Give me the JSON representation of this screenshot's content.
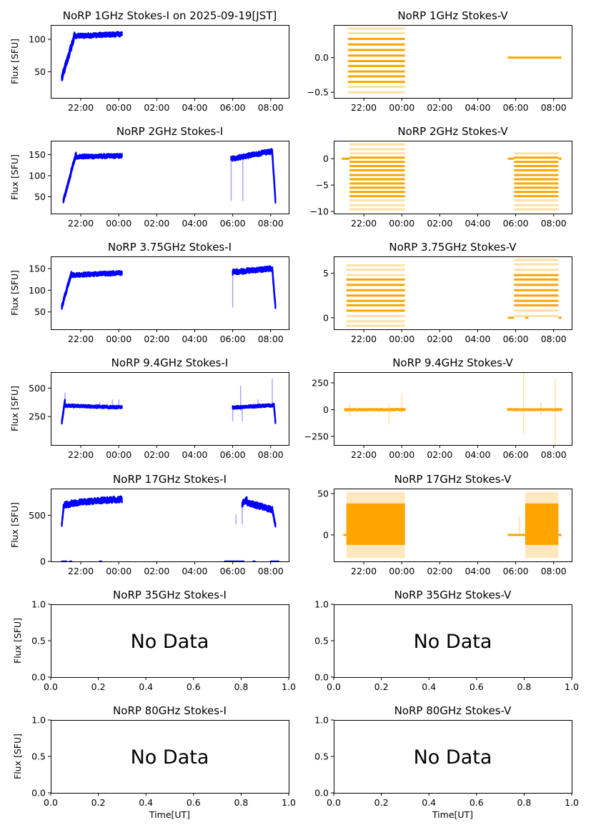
{
  "figure": {
    "colors": {
      "stokes_i": "#0000ff",
      "stokes_v": "#ffa500",
      "axis": "#000000"
    },
    "ylabel": "Flux [SFU]",
    "xlabel": "Time[UT]",
    "no_data_text": "No Data"
  },
  "chart_data": [
    {
      "type": "scatter",
      "title": "NoRP 1GHz Stokes-I on 2025-09-19[JST]",
      "stokes": "I",
      "has_data": true,
      "xlabel": "",
      "ylabel": "Flux [SFU]",
      "xlim": [
        "20:25",
        "08:57"
      ],
      "ylim": [
        10,
        122
      ],
      "xticks": [
        "22:00",
        "00:00",
        "02:00",
        "04:00",
        "06:00",
        "08:00"
      ],
      "yticks": [
        50,
        100
      ],
      "segments": [
        {
          "start": "21:00",
          "end": "21:40",
          "from": 40,
          "to": 105,
          "band": 8,
          "shape": "ramp"
        },
        {
          "start": "21:40",
          "end": "00:10",
          "from": 105,
          "to": 108,
          "band": 5,
          "shape": "flat"
        }
      ],
      "spikes": []
    },
    {
      "type": "scatter",
      "title": "NoRP 1GHz Stokes-V",
      "stokes": "V",
      "has_data": true,
      "xlabel": "",
      "ylabel": "",
      "xlim": [
        "20:25",
        "08:57"
      ],
      "ylim": [
        -0.58,
        0.47
      ],
      "xticks": [
        "22:00",
        "00:00",
        "02:00",
        "04:00",
        "06:00",
        "08:00"
      ],
      "yticks": [
        -0.5,
        0.0
      ],
      "segments": [
        {
          "start": "21:10",
          "end": "00:10",
          "quantized_levels": [
            -0.5,
            -0.42,
            -0.35,
            -0.27,
            -0.2,
            -0.12,
            -0.05,
            0.03,
            0.11,
            0.19,
            0.27,
            0.35,
            0.42
          ],
          "core_range": [
            -0.35,
            0.27
          ]
        },
        {
          "start": "05:35",
          "end": "08:25",
          "constant": 0.0
        }
      ],
      "spikes": []
    },
    {
      "type": "scatter",
      "title": "NoRP 2GHz Stokes-I",
      "stokes": "I",
      "has_data": true,
      "xlabel": "",
      "ylabel": "Flux [SFU]",
      "xlim": [
        "20:25",
        "08:57"
      ],
      "ylim": [
        10,
        183
      ],
      "xticks": [
        "22:00",
        "00:00",
        "02:00",
        "04:00",
        "06:00",
        "08:00"
      ],
      "yticks": [
        50,
        100,
        150
      ],
      "segments": [
        {
          "start": "21:05",
          "end": "21:45",
          "from": 40,
          "to": 152,
          "band": 8,
          "shape": "ramp"
        },
        {
          "start": "21:45",
          "end": "00:10",
          "from": 145,
          "to": 147,
          "band": 7,
          "shape": "flat"
        },
        {
          "start": "05:55",
          "end": "08:05",
          "from": 140,
          "to": 158,
          "band": 8,
          "shape": "flat"
        },
        {
          "start": "08:05",
          "end": "08:15",
          "from": 155,
          "to": 40,
          "band": 8,
          "shape": "ramp"
        }
      ],
      "spikes": [
        {
          "t": "05:55",
          "min": 40,
          "max": 145
        },
        {
          "t": "06:32",
          "min": 40,
          "max": 140
        }
      ]
    },
    {
      "type": "scatter",
      "title": "NoRP 2GHz Stokes-V",
      "stokes": "V",
      "has_data": true,
      "xlabel": "",
      "ylabel": "",
      "xlim": [
        "20:25",
        "08:57"
      ],
      "ylim": [
        -10.4,
        3.4
      ],
      "xticks": [
        "22:00",
        "00:00",
        "02:00",
        "04:00",
        "06:00",
        "08:00"
      ],
      "yticks": [
        -10,
        -5,
        0
      ],
      "segments": [
        {
          "start": "21:15",
          "end": "00:10",
          "quantized_levels": [
            2.7,
            1.8,
            1.0,
            0.2,
            -0.6,
            -1.4,
            -2.2,
            -3.1,
            -3.9,
            -4.7,
            -5.5,
            -6.3,
            -7.1,
            -7.9,
            -8.8,
            -9.6
          ],
          "core_range": [
            -7.1,
            0.2
          ]
        },
        {
          "start": "05:55",
          "end": "08:15",
          "quantized_levels": [
            1.0,
            0.2,
            -0.6,
            -1.4,
            -2.2,
            -3.1,
            -3.9,
            -4.7,
            -5.5,
            -6.3,
            -7.1,
            -7.9,
            -8.8,
            -9.6
          ],
          "core_range": [
            -7.1,
            0.2
          ]
        },
        {
          "start": "20:50",
          "end": "21:15",
          "constant": 0.0
        },
        {
          "start": "05:35",
          "end": "05:55",
          "constant": 0.0
        },
        {
          "start": "08:15",
          "end": "08:25",
          "constant": 0.0
        }
      ],
      "spikes": []
    },
    {
      "type": "scatter",
      "title": "NoRP 3.75GHz Stokes-I",
      "stokes": "I",
      "has_data": true,
      "xlabel": "",
      "ylabel": "Flux [SFU]",
      "xlim": [
        "20:25",
        "08:57"
      ],
      "ylim": [
        10,
        178
      ],
      "xticks": [
        "22:00",
        "00:00",
        "02:00",
        "04:00",
        "06:00",
        "08:00"
      ],
      "yticks": [
        50,
        100,
        150
      ],
      "segments": [
        {
          "start": "21:00",
          "end": "21:30",
          "from": 62,
          "to": 140,
          "band": 8,
          "shape": "ramp"
        },
        {
          "start": "21:30",
          "end": "00:10",
          "from": 135,
          "to": 140,
          "band": 7,
          "shape": "flat"
        },
        {
          "start": "06:00",
          "end": "08:05",
          "from": 142,
          "to": 150,
          "band": 8,
          "shape": "flat"
        },
        {
          "start": "08:05",
          "end": "08:15",
          "from": 150,
          "to": 62,
          "band": 8,
          "shape": "ramp"
        }
      ],
      "spikes": [
        {
          "t": "06:00",
          "min": 60,
          "max": 140
        }
      ]
    },
    {
      "type": "scatter",
      "title": "NoRP 3.75GHz Stokes-V",
      "stokes": "V",
      "has_data": true,
      "xlabel": "",
      "ylabel": "",
      "xlim": [
        "20:25",
        "08:57"
      ],
      "ylim": [
        -1.3,
        6.9
      ],
      "xticks": [
        "22:00",
        "00:00",
        "02:00",
        "04:00",
        "06:00",
        "08:00"
      ],
      "yticks": [
        0,
        5
      ],
      "segments": [
        {
          "start": "21:05",
          "end": "00:10",
          "quantized_levels": [
            -0.9,
            -0.4,
            0.2,
            0.8,
            1.4,
            1.9,
            2.5,
            3.1,
            3.7,
            4.3,
            4.8,
            5.4,
            5.9
          ],
          "core_range": [
            0.8,
            4.3
          ]
        },
        {
          "start": "05:55",
          "end": "08:15",
          "quantized_levels": [
            0.2,
            0.8,
            1.4,
            1.9,
            2.5,
            3.1,
            3.7,
            4.3,
            4.8,
            5.4,
            6.0,
            6.5
          ],
          "core_range": [
            1.4,
            4.8
          ]
        },
        {
          "start": "05:35",
          "end": "05:55",
          "constant": 0.0
        },
        {
          "start": "06:30",
          "end": "06:40",
          "constant": 0.0
        },
        {
          "start": "08:15",
          "end": "08:25",
          "constant": 0.0
        }
      ],
      "spikes": []
    },
    {
      "type": "scatter",
      "title": "NoRP 9.4GHz Stokes-I",
      "stokes": "I",
      "has_data": true,
      "xlabel": "",
      "ylabel": "Flux [SFU]",
      "xlim": [
        "20:25",
        "08:57"
      ],
      "ylim": [
        0,
        640
      ],
      "xticks": [
        "22:00",
        "00:00",
        "02:00",
        "04:00",
        "06:00",
        "08:00"
      ],
      "yticks": [
        250,
        500
      ],
      "segments": [
        {
          "start": "21:00",
          "end": "21:10",
          "from": 200,
          "to": 390,
          "band": 25,
          "shape": "ramp"
        },
        {
          "start": "21:10",
          "end": "00:10",
          "from": 345,
          "to": 330,
          "band": 18,
          "shape": "flat"
        },
        {
          "start": "06:00",
          "end": "08:10",
          "from": 330,
          "to": 350,
          "band": 18,
          "shape": "flat"
        },
        {
          "start": "08:10",
          "end": "08:15",
          "from": 360,
          "to": 200,
          "band": 20,
          "shape": "ramp"
        }
      ],
      "spikes": [
        {
          "t": "21:10",
          "min": 330,
          "max": 460
        },
        {
          "t": "23:00",
          "min": 330,
          "max": 380
        },
        {
          "t": "23:40",
          "min": 330,
          "max": 400
        },
        {
          "t": "00:00",
          "min": 320,
          "max": 400
        },
        {
          "t": "06:00",
          "min": 210,
          "max": 340
        },
        {
          "t": "06:25",
          "min": 300,
          "max": 520
        },
        {
          "t": "06:30",
          "min": 210,
          "max": 330
        },
        {
          "t": "07:20",
          "min": 330,
          "max": 400
        },
        {
          "t": "08:05",
          "min": 340,
          "max": 580
        }
      ]
    },
    {
      "type": "scatter",
      "title": "NoRP 9.4GHz Stokes-V",
      "stokes": "V",
      "has_data": true,
      "xlabel": "",
      "ylabel": "",
      "xlim": [
        "20:25",
        "08:57"
      ],
      "ylim": [
        -330,
        350
      ],
      "xticks": [
        "22:00",
        "00:00",
        "02:00",
        "04:00",
        "06:00",
        "08:00"
      ],
      "yticks": [
        -250,
        0,
        250
      ],
      "segments": [
        {
          "start": "21:00",
          "end": "00:10",
          "from": 0,
          "to": 0,
          "band": 12,
          "shape": "flat"
        },
        {
          "start": "05:35",
          "end": "08:25",
          "from": 0,
          "to": 0,
          "band": 10,
          "shape": "flat"
        }
      ],
      "spikes": [
        {
          "t": "21:15",
          "min": -60,
          "max": 60
        },
        {
          "t": "23:20",
          "min": -140,
          "max": 60
        },
        {
          "t": "00:00",
          "min": -40,
          "max": 150
        },
        {
          "t": "06:25",
          "min": -230,
          "max": 350
        },
        {
          "t": "07:20",
          "min": -50,
          "max": 70
        },
        {
          "t": "08:05",
          "min": -330,
          "max": 290
        }
      ]
    },
    {
      "type": "scatter",
      "title": "NoRP 17GHz Stokes-I",
      "stokes": "I",
      "has_data": true,
      "xlabel": "",
      "ylabel": "Flux [SFU]",
      "xlim": [
        "20:25",
        "08:57"
      ],
      "ylim": [
        0,
        790
      ],
      "xticks": [
        "22:00",
        "00:00",
        "02:00",
        "04:00",
        "06:00",
        "08:00"
      ],
      "yticks": [
        0,
        500
      ],
      "segments": [
        {
          "start": "21:00",
          "end": "21:05",
          "from": 400,
          "to": 560,
          "band": 30,
          "shape": "ramp"
        },
        {
          "start": "21:05",
          "end": "00:10",
          "from": 600,
          "to": 675,
          "band": 45,
          "shape": "curve"
        },
        {
          "start": "06:30",
          "end": "06:45",
          "from": 620,
          "to": 680,
          "band": 45,
          "shape": "flat"
        },
        {
          "start": "06:45",
          "end": "08:05",
          "from": 640,
          "to": 560,
          "band": 45,
          "shape": "flat"
        },
        {
          "start": "08:05",
          "end": "08:15",
          "from": 560,
          "to": 400,
          "band": 30,
          "shape": "ramp"
        },
        {
          "start": "21:00",
          "end": "21:15",
          "from": 0,
          "to": 0,
          "band": 2,
          "shape": "flat"
        },
        {
          "start": "21:25",
          "end": "21:30",
          "from": 0,
          "to": 0,
          "band": 2,
          "shape": "flat"
        },
        {
          "start": "23:00",
          "end": "23:05",
          "from": 0,
          "to": 0,
          "band": 2,
          "shape": "flat"
        },
        {
          "start": "05:35",
          "end": "06:35",
          "from": 0,
          "to": 0,
          "band": 2,
          "shape": "flat"
        },
        {
          "start": "07:05",
          "end": "07:10",
          "from": 0,
          "to": 0,
          "band": 2,
          "shape": "flat"
        },
        {
          "start": "08:00",
          "end": "08:25",
          "from": 0,
          "to": 0,
          "band": 2,
          "shape": "flat"
        }
      ],
      "spikes": [
        {
          "t": "06:10",
          "min": 400,
          "max": 510
        },
        {
          "t": "06:30",
          "min": 400,
          "max": 600
        }
      ]
    },
    {
      "type": "scatter",
      "title": "NoRP 17GHz Stokes-V",
      "stokes": "V",
      "has_data": true,
      "xlabel": "",
      "ylabel": "",
      "xlim": [
        "20:25",
        "08:57"
      ],
      "ylim": [
        -32,
        56
      ],
      "xticks": [
        "22:00",
        "00:00",
        "02:00",
        "04:00",
        "06:00",
        "08:00"
      ],
      "yticks": [
        0,
        50
      ],
      "segments": [
        {
          "start": "21:05",
          "end": "00:10",
          "noise_range": [
            -12,
            38
          ],
          "outer_range": [
            -28,
            52
          ]
        },
        {
          "start": "06:30",
          "end": "08:15",
          "noise_range": [
            -12,
            38
          ],
          "outer_range": [
            -28,
            52
          ]
        },
        {
          "start": "20:55",
          "end": "21:05",
          "constant": 0.0
        },
        {
          "start": "05:35",
          "end": "06:30",
          "constant": 0.0
        },
        {
          "start": "08:15",
          "end": "08:25",
          "constant": 0.0
        }
      ],
      "spikes": [
        {
          "t": "06:12",
          "min": 0,
          "max": 22
        }
      ]
    },
    {
      "type": "scatter",
      "title": "NoRP 35GHz Stokes-I",
      "stokes": "I",
      "has_data": false,
      "xlabel": "",
      "ylabel": "Flux [SFU]",
      "xlim": [
        0,
        1
      ],
      "ylim": [
        0,
        1
      ],
      "xticks": [
        "0.0",
        "0.2",
        "0.4",
        "0.6",
        "0.8",
        "1.0"
      ],
      "yticks": [
        "0.0",
        "0.5",
        "1.0"
      ],
      "annotation": "No Data"
    },
    {
      "type": "scatter",
      "title": "NoRP 35GHz Stokes-V",
      "stokes": "V",
      "has_data": false,
      "xlabel": "",
      "ylabel": "",
      "xlim": [
        0,
        1
      ],
      "ylim": [
        0,
        1
      ],
      "xticks": [
        "0.0",
        "0.2",
        "0.4",
        "0.6",
        "0.8",
        "1.0"
      ],
      "yticks": [
        "0.0",
        "0.5",
        "1.0"
      ],
      "annotation": "No Data"
    },
    {
      "type": "scatter",
      "title": "NoRP 80GHz Stokes-I",
      "stokes": "I",
      "has_data": false,
      "xlabel": "Time[UT]",
      "ylabel": "Flux [SFU]",
      "xlim": [
        0,
        1
      ],
      "ylim": [
        0,
        1
      ],
      "xticks": [
        "0.0",
        "0.2",
        "0.4",
        "0.6",
        "0.8",
        "1.0"
      ],
      "yticks": [
        "0.0",
        "0.5",
        "1.0"
      ],
      "annotation": "No Data"
    },
    {
      "type": "scatter",
      "title": "NoRP 80GHz Stokes-V",
      "stokes": "V",
      "has_data": false,
      "xlabel": "Time[UT]",
      "ylabel": "",
      "xlim": [
        0,
        1
      ],
      "ylim": [
        0,
        1
      ],
      "xticks": [
        "0.0",
        "0.2",
        "0.4",
        "0.6",
        "0.8",
        "1.0"
      ],
      "yticks": [
        "0.0",
        "0.5",
        "1.0"
      ],
      "annotation": "No Data"
    }
  ]
}
